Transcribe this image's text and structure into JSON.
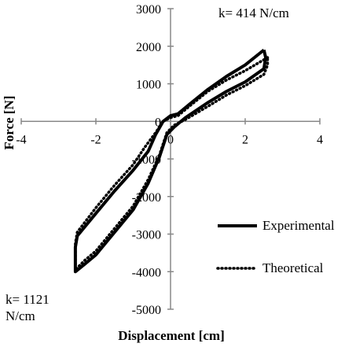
{
  "chart_data": {
    "type": "line",
    "xlabel": "Displacement [cm]",
    "ylabel": "Force [N]",
    "xlim": [
      -4,
      4
    ],
    "ylim": [
      -5000,
      3000
    ],
    "x_ticks": [
      -4,
      -2,
      0,
      2,
      4
    ],
    "y_ticks": [
      3000,
      2000,
      1000,
      0,
      -1000,
      -2000,
      -3000,
      -4000,
      -5000
    ],
    "grid": false,
    "legend_position": "right",
    "annotations": [
      "k= 414 N/cm",
      "k= 1121",
      "N/cm"
    ],
    "series": [
      {
        "name": "Experimental",
        "style": "solid",
        "color": "#000000",
        "points": [
          [
            2.5,
            1900
          ],
          [
            2.0,
            1500
          ],
          [
            1.5,
            1200
          ],
          [
            1.0,
            850
          ],
          [
            0.5,
            450
          ],
          [
            0.2,
            200
          ],
          [
            0.0,
            150
          ],
          [
            -0.2,
            0
          ],
          [
            -0.4,
            -350
          ],
          [
            -0.6,
            -800
          ],
          [
            -1.0,
            -1300
          ],
          [
            -1.5,
            -1850
          ],
          [
            -2.0,
            -2450
          ],
          [
            -2.5,
            -3050
          ],
          [
            -2.55,
            -3350
          ],
          [
            -2.55,
            -4000
          ],
          [
            -2.3,
            -3800
          ],
          [
            -2.0,
            -3550
          ],
          [
            -1.5,
            -2950
          ],
          [
            -1.0,
            -2350
          ],
          [
            -0.6,
            -1650
          ],
          [
            -0.3,
            -950
          ],
          [
            -0.1,
            -350
          ],
          [
            0.1,
            -150
          ],
          [
            0.4,
            100
          ],
          [
            1.0,
            500
          ],
          [
            1.5,
            800
          ],
          [
            2.0,
            1050
          ],
          [
            2.5,
            1400
          ],
          [
            2.55,
            1700
          ],
          [
            2.5,
            1900
          ]
        ]
      },
      {
        "name": "Theoretical",
        "style": "dotted",
        "color": "#000000",
        "points": [
          [
            2.6,
            1700
          ],
          [
            2.0,
            1350
          ],
          [
            1.5,
            1100
          ],
          [
            1.0,
            800
          ],
          [
            0.5,
            400
          ],
          [
            0.2,
            150
          ],
          [
            0.0,
            100
          ],
          [
            -0.2,
            0
          ],
          [
            -0.4,
            -300
          ],
          [
            -0.7,
            -700
          ],
          [
            -1.0,
            -1150
          ],
          [
            -1.5,
            -1700
          ],
          [
            -2.0,
            -2300
          ],
          [
            -2.5,
            -2950
          ],
          [
            -2.55,
            -3250
          ],
          [
            -2.55,
            -3950
          ],
          [
            -2.3,
            -3700
          ],
          [
            -2.0,
            -3450
          ],
          [
            -1.5,
            -2850
          ],
          [
            -1.0,
            -2250
          ],
          [
            -0.6,
            -1550
          ],
          [
            -0.3,
            -900
          ],
          [
            -0.1,
            -300
          ],
          [
            0.1,
            -100
          ],
          [
            0.4,
            50
          ],
          [
            1.0,
            400
          ],
          [
            1.5,
            700
          ],
          [
            2.0,
            950
          ],
          [
            2.5,
            1250
          ],
          [
            2.6,
            1500
          ],
          [
            2.6,
            1700
          ]
        ]
      }
    ]
  }
}
